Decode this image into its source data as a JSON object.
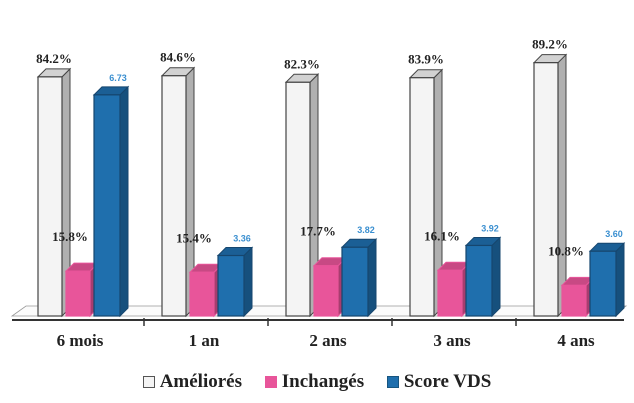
{
  "chart_data": {
    "type": "bar",
    "categories": [
      "6 mois",
      "1 an",
      "2 ans",
      "3 ans",
      "4 ans"
    ],
    "series": [
      {
        "name": "Améliorés",
        "values": [
          84.2,
          84.6,
          82.3,
          83.9,
          89.2
        ],
        "labels": [
          "84.2%",
          "84.6%",
          "82.3%",
          "83.9%",
          "89.2%"
        ],
        "color": "#f4f4f4"
      },
      {
        "name": "Inchangés",
        "values": [
          15.8,
          15.4,
          17.7,
          16.1,
          10.8
        ],
        "labels": [
          "15.8%",
          "15.4%",
          "17.7%",
          "16.1%",
          "10.8%"
        ],
        "color": "#e8559a"
      },
      {
        "name": "Score VDS",
        "values": [
          6.73,
          3.36,
          3.82,
          3.92,
          3.6
        ],
        "labels": [
          "6.73",
          "3.36",
          "3.82",
          "3.92",
          "3.60"
        ],
        "color": "#1f6fad"
      }
    ],
    "grid": false,
    "legend_position": "bottom"
  }
}
